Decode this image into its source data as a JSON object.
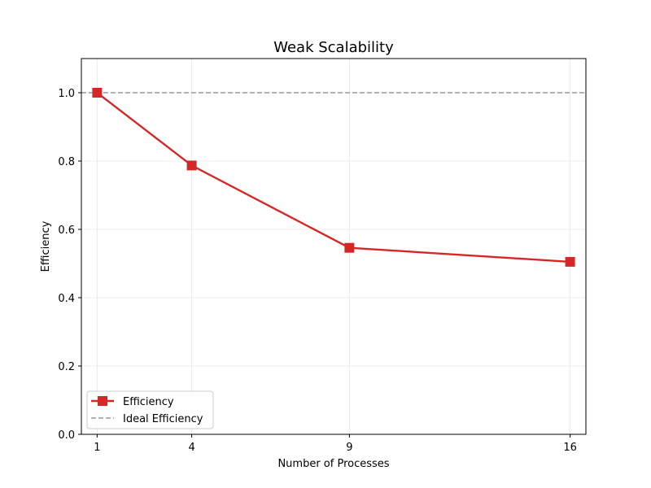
{
  "chart_data": {
    "type": "line",
    "title": "Weak Scalability",
    "xlabel": "Number of Processes",
    "ylabel": "Efficiency",
    "x": [
      1,
      4,
      9,
      16
    ],
    "xlim": [
      0.5,
      16.5
    ],
    "ylim": [
      0,
      1.1
    ],
    "xticks": [
      "1",
      "4",
      "9",
      "16"
    ],
    "yticks": [
      "0.0",
      "0.2",
      "0.4",
      "0.6",
      "0.8",
      "1.0"
    ],
    "grid": true,
    "legend_position": "lower-left",
    "series": [
      {
        "name": "Efficiency",
        "values": [
          1.0,
          0.787,
          0.546,
          0.505
        ],
        "color": "#d62728",
        "marker": "square",
        "style": "solid"
      }
    ],
    "reference_lines": [
      {
        "name": "Ideal Efficiency",
        "y": 1.0,
        "color": "#999999",
        "style": "dashed"
      }
    ]
  }
}
